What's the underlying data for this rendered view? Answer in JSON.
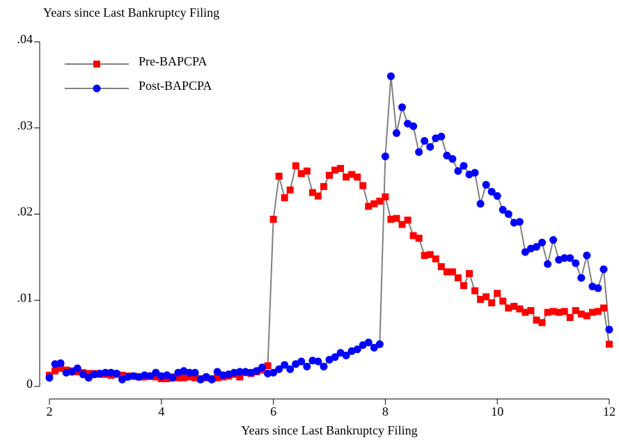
{
  "chart_data": {
    "type": "line",
    "ylabel": "Years since Last Bankruptcy Filing",
    "xlabel": "Years since Last Bankruptcy Filing",
    "x": [
      2,
      2.1,
      2.2,
      2.3,
      2.4,
      2.5,
      2.6,
      2.7,
      2.8,
      2.9,
      3,
      3.1,
      3.2,
      3.3,
      3.4,
      3.5,
      3.6,
      3.7,
      3.8,
      3.9,
      4,
      4.1,
      4.2,
      4.3,
      4.4,
      4.5,
      4.6,
      4.7,
      4.8,
      4.9,
      5,
      5.1,
      5.2,
      5.3,
      5.4,
      5.5,
      5.6,
      5.7,
      5.8,
      5.9,
      6,
      6.1,
      6.2,
      6.3,
      6.4,
      6.5,
      6.6,
      6.7,
      6.8,
      6.9,
      7,
      7.1,
      7.2,
      7.3,
      7.4,
      7.5,
      7.6,
      7.7,
      7.8,
      7.9,
      8,
      8.1,
      8.2,
      8.3,
      8.4,
      8.5,
      8.6,
      8.7,
      8.8,
      8.9,
      9,
      9.1,
      9.2,
      9.3,
      9.4,
      9.5,
      9.6,
      9.7,
      9.8,
      9.9,
      10,
      10.1,
      10.2,
      10.3,
      10.4,
      10.5,
      10.6,
      10.7,
      10.8,
      10.9,
      11,
      11.1,
      11.2,
      11.3,
      11.4,
      11.5,
      11.6,
      11.7,
      11.8,
      11.9,
      12
    ],
    "series": [
      {
        "name": "Pre-BAPCPA",
        "color": "#ff0000",
        "marker": "square",
        "values": [
          0.0013,
          0.0018,
          0.0021,
          0.0019,
          0.0018,
          0.0017,
          0.0016,
          0.0015,
          0.0015,
          0.0014,
          0.0014,
          0.0013,
          0.0014,
          0.0013,
          0.0012,
          0.0012,
          0.0011,
          0.0011,
          0.0012,
          0.0011,
          0.0009,
          0.0009,
          0.0011,
          0.001,
          0.001,
          0.0011,
          0.001,
          0.0009,
          0.001,
          0.0009,
          0.001,
          0.0011,
          0.0012,
          0.0014,
          0.0011,
          0.0016,
          0.0015,
          0.0017,
          0.0019,
          0.0024,
          0.0194,
          0.0244,
          0.0219,
          0.0228,
          0.0256,
          0.0247,
          0.025,
          0.0225,
          0.0221,
          0.0232,
          0.0245,
          0.0251,
          0.0253,
          0.0243,
          0.0246,
          0.0243,
          0.0233,
          0.0209,
          0.0212,
          0.0215,
          0.022,
          0.0194,
          0.0195,
          0.0188,
          0.0193,
          0.0175,
          0.0172,
          0.0152,
          0.0153,
          0.0148,
          0.0139,
          0.0133,
          0.0133,
          0.0126,
          0.0117,
          0.0131,
          0.0111,
          0.0101,
          0.0104,
          0.0097,
          0.0108,
          0.0099,
          0.0091,
          0.0093,
          0.009,
          0.0086,
          0.0088,
          0.0077,
          0.0074,
          0.0086,
          0.0087,
          0.0086,
          0.0087,
          0.008,
          0.0088,
          0.0084,
          0.0082,
          0.0086,
          0.0087,
          0.0091,
          0.0049
        ]
      },
      {
        "name": "Post-BAPCPA",
        "color": "#0000ff",
        "marker": "circle",
        "values": [
          0.001,
          0.0026,
          0.0027,
          0.0016,
          0.0017,
          0.0021,
          0.0014,
          0.001,
          0.0014,
          0.0015,
          0.0016,
          0.0016,
          0.0015,
          0.0008,
          0.0011,
          0.0012,
          0.0011,
          0.0013,
          0.0012,
          0.0016,
          0.0012,
          0.0013,
          0.001,
          0.0016,
          0.0018,
          0.0016,
          0.0016,
          0.0008,
          0.0011,
          0.0008,
          0.0017,
          0.0013,
          0.0014,
          0.0016,
          0.0017,
          0.0017,
          0.0016,
          0.0018,
          0.0022,
          0.0015,
          0.0016,
          0.002,
          0.0025,
          0.002,
          0.0026,
          0.0029,
          0.0023,
          0.003,
          0.0029,
          0.0023,
          0.0031,
          0.0034,
          0.0039,
          0.0036,
          0.0041,
          0.0043,
          0.0048,
          0.0051,
          0.0045,
          0.0049,
          0.0267,
          0.036,
          0.0294,
          0.0324,
          0.0305,
          0.0302,
          0.0272,
          0.0285,
          0.0278,
          0.0288,
          0.029,
          0.0268,
          0.0264,
          0.025,
          0.0256,
          0.0246,
          0.0248,
          0.0212,
          0.0234,
          0.0226,
          0.0221,
          0.0205,
          0.02,
          0.019,
          0.0191,
          0.0156,
          0.016,
          0.0162,
          0.0167,
          0.0142,
          0.017,
          0.0147,
          0.0149,
          0.0149,
          0.0143,
          0.0126,
          0.0152,
          0.0116,
          0.0114,
          0.0136,
          0.0066
        ]
      }
    ],
    "line_color": "#808080",
    "xlim": [
      2,
      12
    ],
    "xticks": [
      2,
      4,
      6,
      8,
      10,
      12
    ],
    "ylim": [
      0,
      0.04
    ],
    "yticks": [
      0,
      {
        "value": 0.01,
        "label": ".01"
      },
      {
        "value": 0.02,
        "label": ".02"
      },
      {
        "value": 0.03,
        "label": ".03"
      },
      {
        "value": 0.04,
        "label": ".04"
      }
    ],
    "legend": "top-left"
  }
}
